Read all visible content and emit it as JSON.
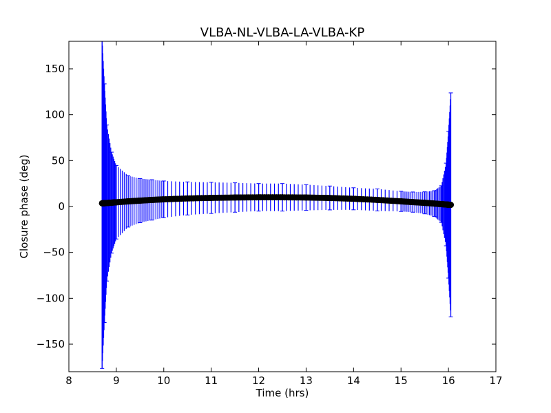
{
  "chart_data": {
    "type": "scatter",
    "title": "VLBA-NL-VLBA-LA-VLBA-KP",
    "xlabel": "Time (hrs)",
    "ylabel": "Closure phase (deg)",
    "xlim": [
      8,
      17
    ],
    "ylim": [
      -180,
      180
    ],
    "xticks": [
      8,
      9,
      10,
      11,
      12,
      13,
      14,
      15,
      16,
      17
    ],
    "xtick_labels": [
      "8",
      "9",
      "10",
      "11",
      "12",
      "13",
      "14",
      "15",
      "16",
      "17"
    ],
    "yticks": [
      -150,
      -100,
      -50,
      0,
      50,
      100,
      150
    ],
    "ytick_labels": [
      "−150",
      "−100",
      "−50",
      "0",
      "50",
      "100",
      "150"
    ],
    "grid": false,
    "colors": {
      "points": "#000000",
      "errorbars": "#0000ff",
      "frame": "#000000"
    },
    "series": [
      {
        "x": [
          8.7,
          8.75,
          8.8,
          8.9,
          9.0,
          9.25,
          9.5,
          9.75,
          10.0,
          10.5,
          11.0,
          11.5,
          12.0,
          12.5,
          13.0,
          13.5,
          14.0,
          14.5,
          15.0,
          15.25,
          15.5,
          15.7,
          15.85,
          15.95,
          16.0,
          16.05
        ],
        "y": [
          3.5,
          3.6,
          3.8,
          4.2,
          4.6,
          5.6,
          6.4,
          7.2,
          7.8,
          8.8,
          9.4,
          9.8,
          10.0,
          10.0,
          9.8,
          9.3,
          8.4,
          7.2,
          5.6,
          4.8,
          4.0,
          3.2,
          2.6,
          2.2,
          2.0,
          1.8
        ],
        "err": [
          180,
          130,
          85,
          55,
          40,
          28,
          24,
          22,
          20,
          18,
          17,
          16,
          15,
          15,
          14,
          13,
          12,
          12,
          11,
          11,
          12,
          14,
          20,
          45,
          80,
          122
        ]
      }
    ]
  }
}
